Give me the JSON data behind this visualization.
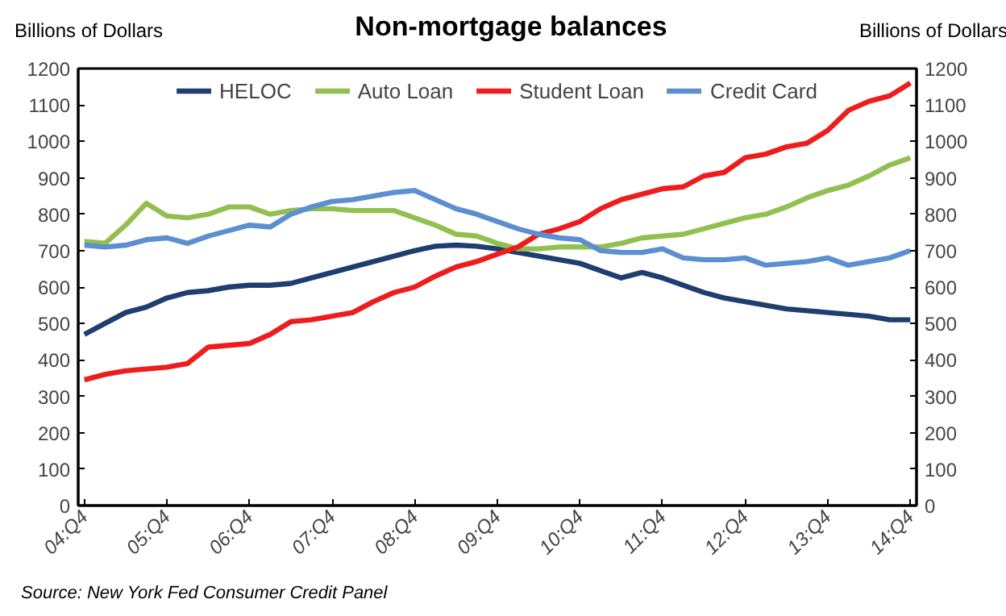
{
  "chart_data": {
    "type": "line",
    "title": "Non-mortgage balances",
    "ylabel": "Billions of Dollars",
    "y2label": "Billions of Dollars",
    "categories": [
      "04:Q4",
      null,
      null,
      null,
      "05:Q4",
      null,
      null,
      null,
      "06:Q4",
      null,
      null,
      null,
      "07:Q4",
      null,
      null,
      null,
      "08:Q4",
      null,
      null,
      null,
      "09:Q4",
      null,
      null,
      null,
      "10:Q4",
      null,
      null,
      null,
      "11:Q4",
      null,
      null,
      null,
      "12:Q4",
      null,
      null,
      null,
      "13:Q4",
      null,
      null,
      null,
      "14:Q4"
    ],
    "series": [
      {
        "name": "HELOC",
        "color": "#1f3d6e",
        "values": [
          470,
          500,
          530,
          545,
          570,
          585,
          590,
          600,
          605,
          605,
          610,
          625,
          640,
          655,
          670,
          685,
          700,
          712,
          715,
          712,
          705,
          695,
          685,
          675,
          665,
          645,
          625,
          640,
          625,
          605,
          585,
          570,
          560,
          550,
          540,
          535,
          530,
          525,
          520,
          510,
          510
        ]
      },
      {
        "name": "Auto Loan",
        "color": "#92c050",
        "values": [
          725,
          720,
          770,
          830,
          795,
          790,
          800,
          820,
          820,
          800,
          810,
          815,
          815,
          810,
          810,
          810,
          790,
          770,
          745,
          740,
          720,
          705,
          705,
          710,
          710,
          710,
          720,
          735,
          740,
          745,
          760,
          775,
          790,
          800,
          820,
          845,
          865,
          880,
          905,
          935,
          955
        ]
      },
      {
        "name": "Student Loan",
        "color": "#ee1c1c",
        "values": [
          345,
          360,
          370,
          375,
          380,
          390,
          435,
          440,
          445,
          470,
          505,
          510,
          520,
          530,
          560,
          585,
          600,
          630,
          655,
          670,
          690,
          710,
          745,
          760,
          780,
          815,
          840,
          855,
          870,
          875,
          905,
          915,
          955,
          965,
          985,
          995,
          1030,
          1085,
          1110,
          1125,
          1160
        ]
      },
      {
        "name": "Credit Card",
        "color": "#5b8fd0",
        "values": [
          715,
          710,
          715,
          730,
          735,
          720,
          740,
          755,
          770,
          765,
          800,
          820,
          835,
          840,
          850,
          860,
          865,
          840,
          815,
          800,
          780,
          760,
          745,
          735,
          730,
          700,
          695,
          695,
          705,
          680,
          675,
          675,
          680,
          660,
          665,
          670,
          680,
          660,
          670,
          680,
          700
        ]
      }
    ],
    "ylim": [
      0,
      1200
    ],
    "yticks": [
      0,
      100,
      200,
      300,
      400,
      500,
      600,
      700,
      800,
      900,
      1000,
      1100,
      1200
    ],
    "y2lim": [
      0,
      1200
    ],
    "y2ticks": [
      0,
      100,
      200,
      300,
      400,
      500,
      600,
      700,
      800,
      900,
      1000,
      1100,
      1200
    ],
    "grid": false,
    "legend": "top",
    "marker": "none",
    "line_style": "solid",
    "annotations": [
      "Source: New York Fed Consumer Credit Panel"
    ]
  }
}
